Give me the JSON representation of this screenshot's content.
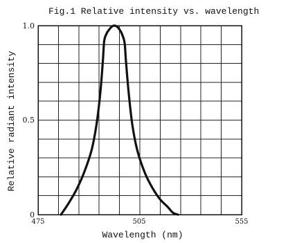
{
  "chart_data": {
    "type": "line",
    "title": "Fig.1 Relative intensity vs. wavelength",
    "xlabel": "Wavelength (nm)",
    "ylabel": "Relative radiant intensity",
    "xlim": [
      475,
      555
    ],
    "ylim": [
      0,
      1.0
    ],
    "x_ticks": [
      475,
      505,
      555
    ],
    "x_tick_labels": [
      "475",
      "505",
      "555"
    ],
    "y_ticks": [
      0,
      0.5,
      1.0
    ],
    "y_tick_labels": [
      "0",
      "0.5",
      "1.0"
    ],
    "grid": true,
    "grid_columns": 10,
    "grid_rows": 10,
    "legend": "none",
    "series": [
      {
        "x": [
          484,
          487,
          490,
          493,
          496,
          498,
          499.5,
          500.5,
          501,
          502,
          503,
          504,
          505,
          506,
          507,
          508,
          509,
          509.5,
          510.5,
          512,
          514,
          517,
          520,
          523,
          526,
          528,
          530
        ],
        "y": [
          0.0,
          0.06,
          0.13,
          0.22,
          0.34,
          0.48,
          0.65,
          0.82,
          0.92,
          0.96,
          0.98,
          0.995,
          1.0,
          0.995,
          0.98,
          0.955,
          0.91,
          0.82,
          0.66,
          0.48,
          0.34,
          0.22,
          0.14,
          0.08,
          0.04,
          0.01,
          0.0
        ]
      }
    ]
  }
}
